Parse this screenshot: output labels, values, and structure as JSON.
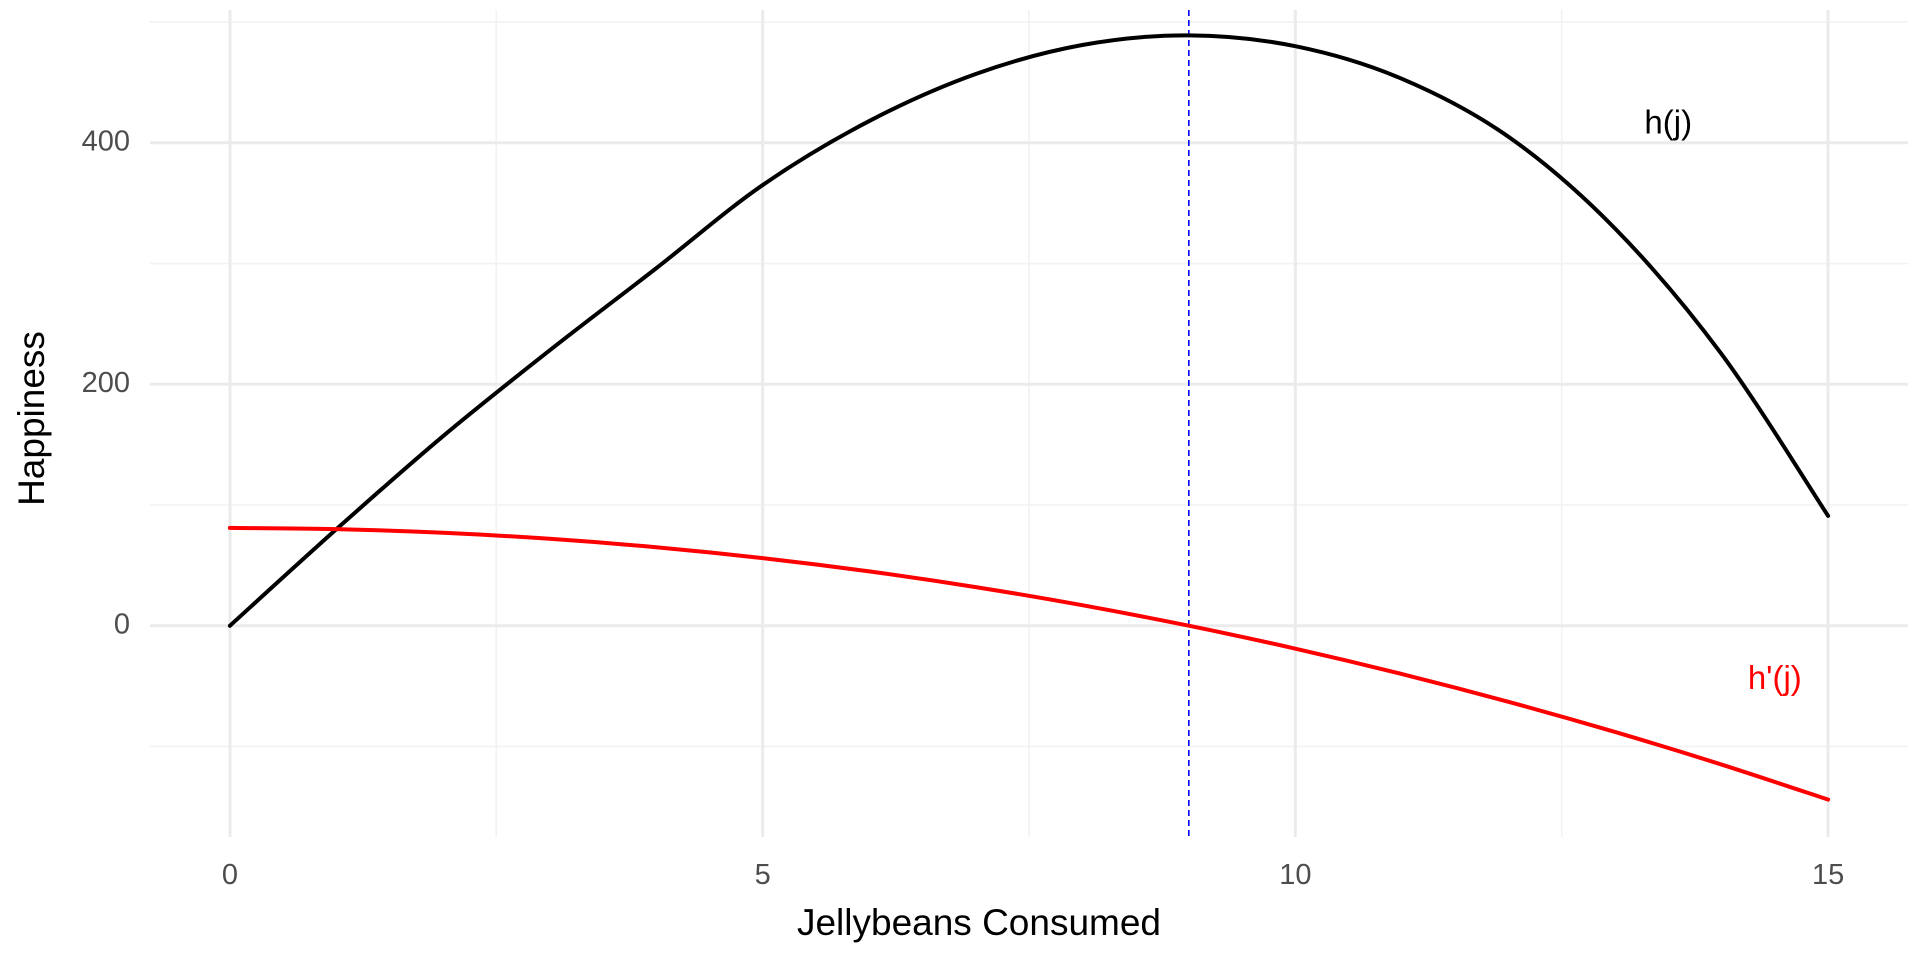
{
  "chart_data": {
    "type": "line",
    "title": "",
    "xlabel": "Jellybeans Consumed",
    "ylabel": "Happiness",
    "xlim": [
      -0.75,
      15.75
    ],
    "ylim": [
      -175,
      510
    ],
    "x_major_ticks": [
      0,
      5,
      10,
      15
    ],
    "x_minor_ticks": [
      2.5,
      7.5,
      12.5
    ],
    "y_major_ticks": [
      0,
      200,
      400
    ],
    "y_minor_ticks": [
      -100,
      100,
      300,
      500
    ],
    "x_tick_labels": [
      "0",
      "5",
      "10",
      "15"
    ],
    "y_tick_labels": [
      "0",
      "200",
      "400"
    ],
    "grid": true,
    "series": [
      {
        "name": "h(j)",
        "color": "#000000",
        "x": [
          0,
          1,
          2,
          3,
          4,
          5,
          6,
          7,
          8,
          9,
          10,
          11,
          12,
          13,
          14,
          15
        ],
        "y": [
          0,
          80,
          157,
          228,
          296,
          365,
          418,
          457,
          481,
          489,
          480,
          453,
          405,
          329,
          225,
          91
        ],
        "label_at": [
          13.5,
          415
        ]
      },
      {
        "name": "h'(j)",
        "color": "#ff0000",
        "x": [
          0,
          1,
          2,
          3,
          4,
          5,
          6,
          7,
          8,
          9,
          10,
          11,
          12,
          13,
          14,
          15
        ],
        "y": [
          81,
          80,
          77,
          72,
          65,
          56,
          45,
          32,
          17,
          0,
          -19,
          -40,
          -63,
          -88,
          -115,
          -144
        ],
        "label_at": [
          14.5,
          -45
        ]
      }
    ],
    "annotations": [
      {
        "type": "vline",
        "x": 9,
        "color": "#0000ff",
        "style": "dashed"
      }
    ]
  }
}
